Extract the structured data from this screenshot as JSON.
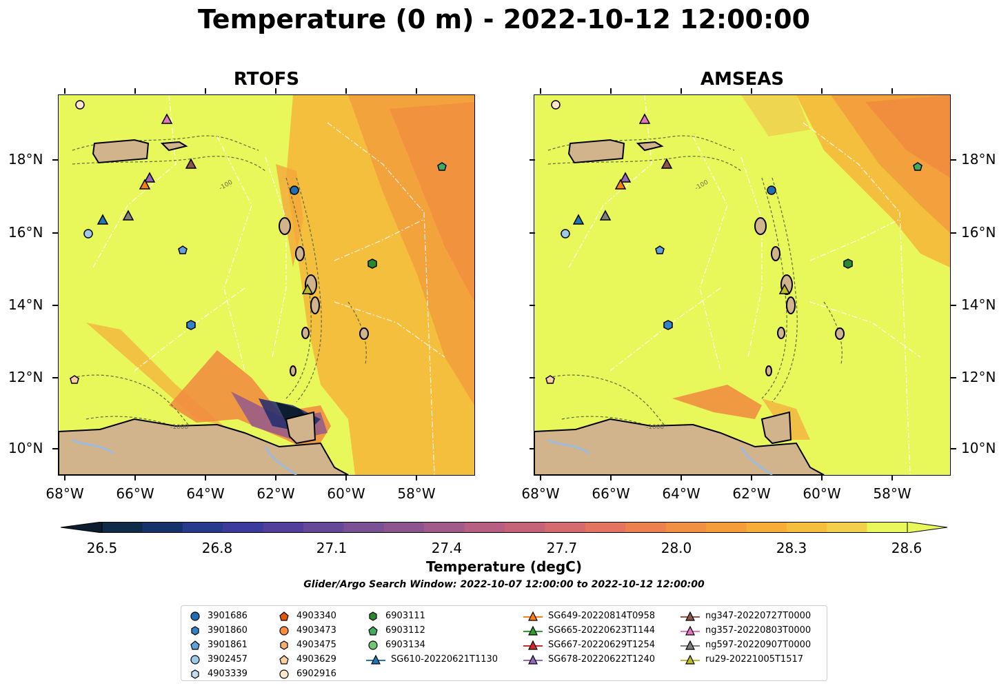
{
  "figure": {
    "title": "Temperature (0 m) - 2022-10-12 12:00:00",
    "panels": [
      {
        "title": "RTOFS"
      },
      {
        "title": "AMSEAS"
      }
    ],
    "lat_ticks": [
      "18°N",
      "16°N",
      "14°N",
      "12°N",
      "10°N"
    ],
    "lon_ticks": [
      "68°W",
      "66°W",
      "64°W",
      "62°W",
      "60°W",
      "58°W"
    ],
    "contour_labels": [
      "-100",
      "-1000"
    ]
  },
  "colorbar": {
    "ticks": [
      "26.5",
      "26.8",
      "27.1",
      "27.4",
      "27.7",
      "28.0",
      "28.3",
      "28.6"
    ],
    "label": "Temperature (degC)",
    "colors": [
      "#0b1d2e",
      "#102a4a",
      "#16326b",
      "#273a8e",
      "#3b3a9d",
      "#533f9b",
      "#654898",
      "#7a5194",
      "#8d5590",
      "#a15b8a",
      "#b65f83",
      "#c6637b",
      "#d56a6f",
      "#e37460",
      "#ec8150",
      "#f18f42",
      "#f59d39",
      "#f7ad36",
      "#f5be3c",
      "#f2d04c",
      "#e8f85a"
    ],
    "min": 26.5,
    "max": 28.6,
    "extend": "both"
  },
  "search_window": "Glider/Argo Search Window: 2022-10-07 12:00:00 to 2022-10-12 12:00:00",
  "legend": {
    "columns": [
      [
        {
          "label": "3901686",
          "marker": "circle",
          "color": "#1f6db5"
        },
        {
          "label": "3901860",
          "marker": "hexagon",
          "color": "#3182c6"
        },
        {
          "label": "3901861",
          "marker": "pentagon",
          "color": "#5fa2d9"
        },
        {
          "label": "3902457",
          "marker": "circle",
          "color": "#9ecae9"
        },
        {
          "label": "4903339",
          "marker": "hexagon",
          "color": "#c6dcf2"
        }
      ],
      [
        {
          "label": "4903340",
          "marker": "pentagon",
          "color": "#e6550d"
        },
        {
          "label": "4903473",
          "marker": "circle",
          "color": "#fd8d3c"
        },
        {
          "label": "4903475",
          "marker": "hexagon",
          "color": "#fdae6b"
        },
        {
          "label": "4903629",
          "marker": "pentagon",
          "color": "#fdd0a2"
        },
        {
          "label": "6902916",
          "marker": "circle",
          "color": "#fee6c8"
        }
      ],
      [
        {
          "label": "6903111",
          "marker": "hexagon",
          "color": "#2a8a2a"
        },
        {
          "label": "6903112",
          "marker": "pentagon",
          "color": "#41ab5d"
        },
        {
          "label": "6903134",
          "marker": "circle",
          "color": "#74c476"
        },
        {
          "label": "SG610-20220621T1130",
          "marker": "triangle",
          "color": "#1f77b4"
        }
      ],
      [
        {
          "label": "SG649-20220814T0958",
          "marker": "triangle",
          "color": "#ff7f0e"
        },
        {
          "label": "SG665-20220623T1144",
          "marker": "triangle",
          "color": "#2ca02c"
        },
        {
          "label": "SG667-20220629T1254",
          "marker": "triangle",
          "color": "#d62728"
        },
        {
          "label": "SG678-20220622T1240",
          "marker": "triangle",
          "color": "#9467bd"
        }
      ],
      [
        {
          "label": "ng347-20220727T0000",
          "marker": "triangle",
          "color": "#8c564b"
        },
        {
          "label": "ng357-20220803T0000",
          "marker": "triangle",
          "color": "#e377c2"
        },
        {
          "label": "ng597-20220907T0000",
          "marker": "triangle",
          "color": "#7f7f7f"
        },
        {
          "label": "ru29-20221005T1517",
          "marker": "triangle",
          "color": "#bcbd22"
        }
      ]
    ]
  },
  "map_colors": {
    "land": "#d2b48c",
    "ocean_base": "#e8f85a",
    "warm": "#f6a03c",
    "hot": "#f08a40",
    "cold": "#27306e",
    "river": "#9dbbdc"
  }
}
